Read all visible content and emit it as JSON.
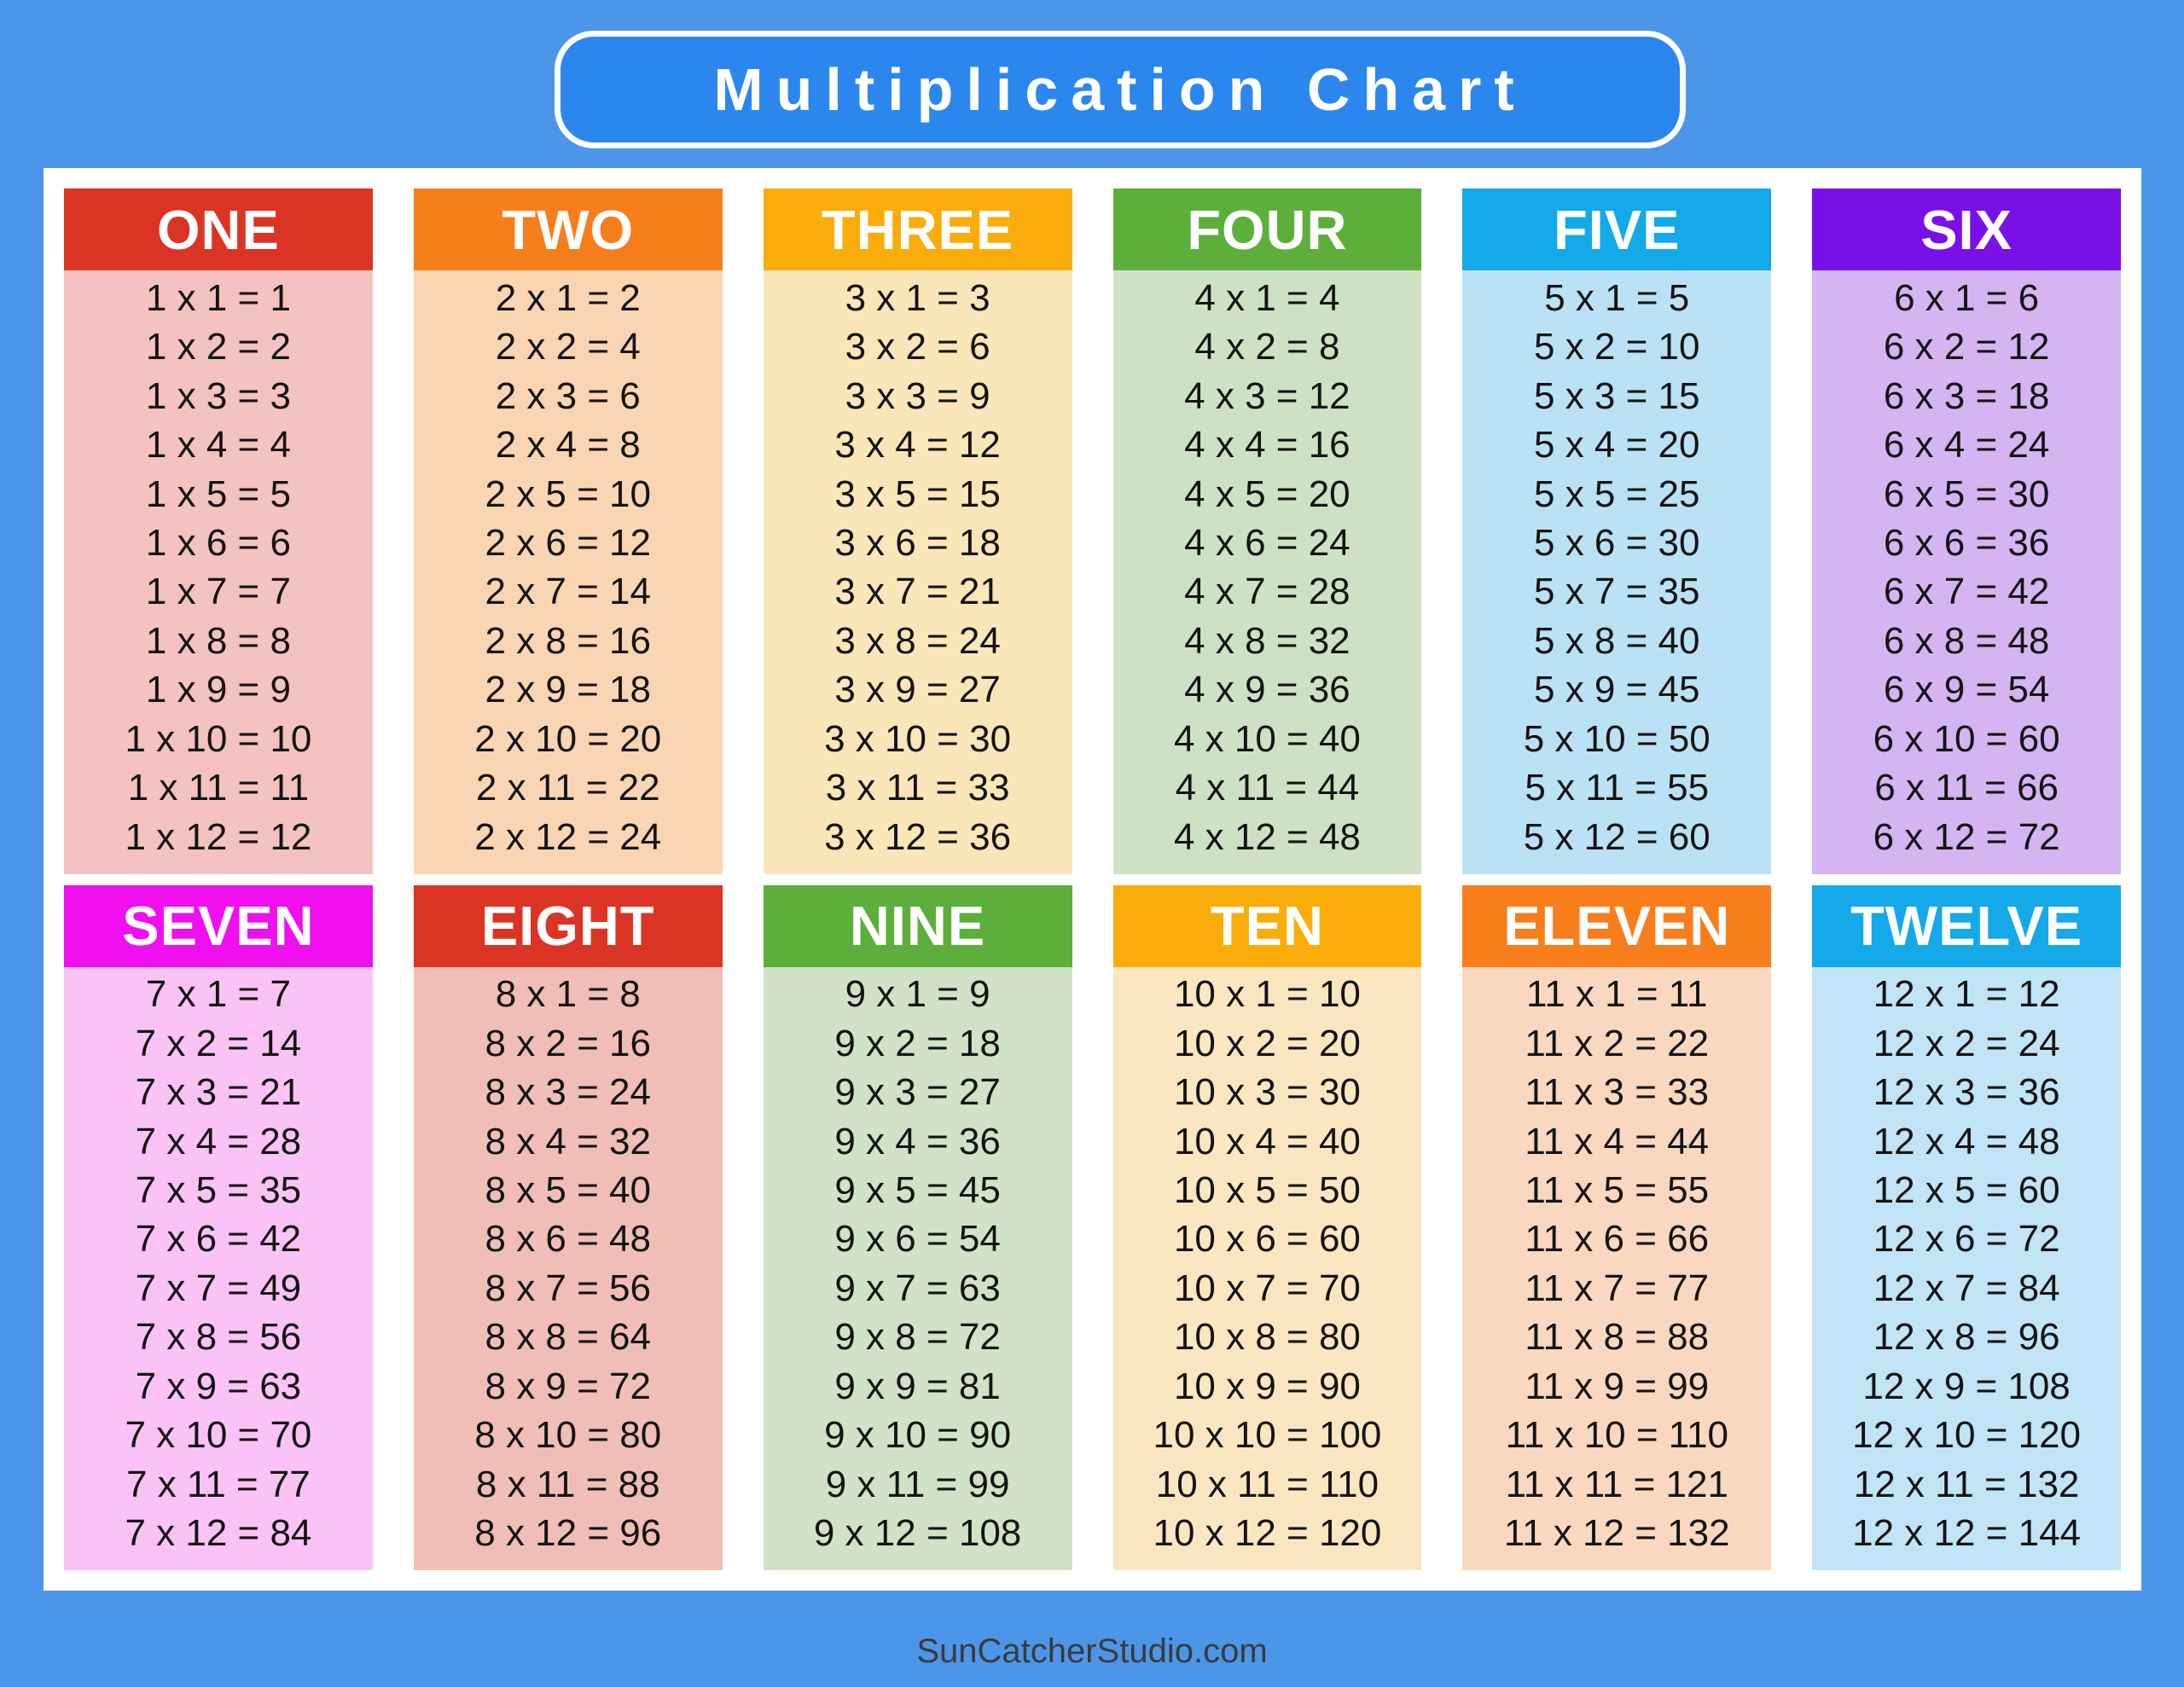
{
  "title": "Multiplication Chart",
  "footer": "SunCatcherStudio.com",
  "colors": {
    "page_bg": "#4C96E9",
    "title_box_bg": "#2B87EE",
    "title_box_border": "#FFFFFF",
    "panel_bg": "#FFFFFF",
    "header_text": "#FFFFFF",
    "equation_text": "#141414",
    "footer_text": "#3B3B3B"
  },
  "tables": [
    {
      "id": "one",
      "label": "ONE",
      "header_color": "#DB3425",
      "body_color": "#F4C2C1",
      "rows": [
        "1 x 1 = 1",
        "1 x 2 = 2",
        "1 x 3 = 3",
        "1 x 4 = 4",
        "1 x 5 = 5",
        "1 x 6 = 6",
        "1 x 7 = 7",
        "1 x 8 = 8",
        "1 x 9 = 9",
        "1 x 10 = 10",
        "1 x 11 = 11",
        "1 x 12 = 12"
      ]
    },
    {
      "id": "two",
      "label": "TWO",
      "header_color": "#F87D1B",
      "body_color": "#FAD5B3",
      "rows": [
        "2 x 1 = 2",
        "2 x 2 = 4",
        "2 x 3 = 6",
        "2 x 4 = 8",
        "2 x 5 = 10",
        "2 x 6 = 12",
        "2 x 7 = 14",
        "2 x 8 = 16",
        "2 x 9 = 18",
        "2 x 10 = 20",
        "2 x 11 = 22",
        "2 x 12 = 24"
      ]
    },
    {
      "id": "three",
      "label": "THREE",
      "header_color": "#FAAC0B",
      "body_color": "#FAE6B8",
      "rows": [
        "3 x 1 = 3",
        "3 x 2 = 6",
        "3 x 3 = 9",
        "3 x 4 = 12",
        "3 x 5 = 15",
        "3 x 6 = 18",
        "3 x 7 = 21",
        "3 x 8 = 24",
        "3 x 9 = 27",
        "3 x 10 = 30",
        "3 x 11 = 33",
        "3 x 12 = 36"
      ]
    },
    {
      "id": "four",
      "label": "FOUR",
      "header_color": "#5DAF3C",
      "body_color": "#CFE1C4",
      "rows": [
        "4 x 1 = 4",
        "4 x 2 = 8",
        "4 x 3 = 12",
        "4 x 4 = 16",
        "4 x 5 = 20",
        "4 x 6 = 24",
        "4 x 7 = 28",
        "4 x 8 = 32",
        "4 x 9 = 36",
        "4 x 10 = 40",
        "4 x 11 = 44",
        "4 x 12 = 48"
      ]
    },
    {
      "id": "five",
      "label": "FIVE",
      "header_color": "#14A9E9",
      "body_color": "#BAE2F4",
      "rows": [
        "5 x 1 = 5",
        "5 x 2 = 10",
        "5 x 3 = 15",
        "5 x 4 = 20",
        "5 x 5 = 25",
        "5 x 6 = 30",
        "5 x 7 = 35",
        "5 x 8 = 40",
        "5 x 9 = 45",
        "5 x 10 = 50",
        "5 x 11 = 55",
        "5 x 12 = 60"
      ]
    },
    {
      "id": "six",
      "label": "SIX",
      "header_color": "#7A10E8",
      "body_color": "#D4B5F2",
      "rows": [
        "6 x 1 = 6",
        "6 x 2 = 12",
        "6 x 3 = 18",
        "6 x 4 = 24",
        "6 x 5 = 30",
        "6 x 6 = 36",
        "6 x 7 = 42",
        "6 x 8 = 48",
        "6 x 9 = 54",
        "6 x 10 = 60",
        "6 x 11 = 66",
        "6 x 12 = 72"
      ]
    },
    {
      "id": "seven",
      "label": "SEVEN",
      "header_color": "#EF0FEF",
      "body_color": "#FBC3F5",
      "rows": [
        "7 x 1 = 7",
        "7 x 2 = 14",
        "7 x 3 = 21",
        "7 x 4 = 28",
        "7 x 5 = 35",
        "7 x 6 = 42",
        "7 x 7 = 49",
        "7 x 8 = 56",
        "7 x 9 = 63",
        "7 x 10 = 70",
        "7 x 11 = 77",
        "7 x 12 = 84"
      ]
    },
    {
      "id": "eight",
      "label": "EIGHT",
      "header_color": "#DB3425",
      "body_color": "#F0BEB7",
      "rows": [
        "8 x 1 = 8",
        "8 x 2 = 16",
        "8 x 3 = 24",
        "8 x 4 = 32",
        "8 x 5 = 40",
        "8 x 6 = 48",
        "8 x 7 = 56",
        "8 x 8 = 64",
        "8 x 9 = 72",
        "8 x 10 = 80",
        "8 x 11 = 88",
        "8 x 12 = 96"
      ]
    },
    {
      "id": "nine",
      "label": "NINE",
      "header_color": "#5DAF3C",
      "body_color": "#D1E2C8",
      "rows": [
        "9 x 1 = 9",
        "9 x 2 = 18",
        "9 x 3 = 27",
        "9 x 4 = 36",
        "9 x 5 = 45",
        "9 x 6 = 54",
        "9 x 7 = 63",
        "9 x 8 = 72",
        "9 x 9 = 81",
        "9 x 10 = 90",
        "9 x 11 = 99",
        "9 x 12 = 108"
      ]
    },
    {
      "id": "ten",
      "label": "TEN",
      "header_color": "#FAAC0B",
      "body_color": "#FAE7C2",
      "rows": [
        "10 x 1 = 10",
        "10 x 2 = 20",
        "10 x 3 = 30",
        "10 x 4 = 40",
        "10 x 5 = 50",
        "10 x 6 = 60",
        "10 x 7 = 70",
        "10 x 8 = 80",
        "10 x 9 = 90",
        "10 x 10 = 100",
        "10 x 11 = 110",
        "10 x 12 = 120"
      ]
    },
    {
      "id": "eleven",
      "label": "ELEVEN",
      "header_color": "#F87D1B",
      "body_color": "#FAD8BF",
      "rows": [
        "11 x 1 = 11",
        "11 x 2 = 22",
        "11 x 3 = 33",
        "11 x 4 = 44",
        "11 x 5 = 55",
        "11 x 6 = 66",
        "11 x 7 = 77",
        "11 x 8 = 88",
        "11 x 9 = 99",
        "11 x 10 = 110",
        "11 x 11 = 121",
        "11 x 12 = 132"
      ]
    },
    {
      "id": "twelve",
      "label": "TWELVE",
      "header_color": "#14A9E9",
      "body_color": "#C1E4F6",
      "rows": [
        "12 x 1 = 12",
        "12 x 2 = 24",
        "12 x 3 = 36",
        "12 x 4 = 48",
        "12 x 5 = 60",
        "12 x 6 = 72",
        "12 x 7 = 84",
        "12 x 8 = 96",
        "12 x 9 = 108",
        "12 x 10 = 120",
        "12 x 11 = 132",
        "12 x 12 = 144"
      ]
    }
  ]
}
